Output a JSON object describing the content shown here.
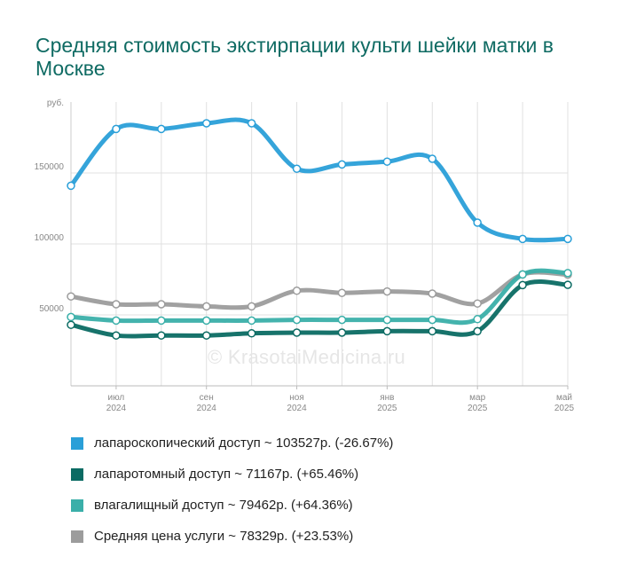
{
  "title": "Средняя стоимость экстирпации культи шейки матки в Москве",
  "watermark": "© KrasotaiMedicina.ru",
  "chart_data": {
    "type": "line",
    "y_unit": "руб.",
    "y_ticks": [
      50000,
      100000,
      150000
    ],
    "y_tick_labels": [
      "50000",
      "100000",
      "150000"
    ],
    "ylim": [
      0,
      200000
    ],
    "x_tick_labels": [
      {
        "month": "июл",
        "year": "2024"
      },
      {
        "month": "сен",
        "year": "2024"
      },
      {
        "month": "ноя",
        "year": "2024"
      },
      {
        "month": "янв",
        "year": "2025"
      },
      {
        "month": "мар",
        "year": "2025"
      },
      {
        "month": "май",
        "year": "2025"
      }
    ],
    "x": [
      "2024-06",
      "2024-07",
      "2024-08",
      "2024-09",
      "2024-10",
      "2024-11",
      "2024-12",
      "2025-01",
      "2025-02",
      "2025-03",
      "2025-04",
      "2025-05"
    ],
    "grid": true,
    "legend_position": "bottom",
    "series": [
      {
        "name": "лапароскопический доступ ~ 103527р. (-26.67%)",
        "color": "#2a9fd8",
        "values": [
          141000,
          181000,
          181000,
          185000,
          185000,
          153000,
          156000,
          158000,
          160000,
          115000,
          103500,
          103527
        ]
      },
      {
        "name": "лапаротомный доступ ~ 71167р. (+65.46%)",
        "color": "#0b6b63",
        "values": [
          43000,
          35500,
          35500,
          35500,
          37000,
          37500,
          37500,
          38500,
          38500,
          38500,
          71000,
          71167
        ]
      },
      {
        "name": "влагалищный доступ ~ 79462р. (+64.36%)",
        "color": "#3aafa9",
        "values": [
          48500,
          46000,
          46000,
          46000,
          46000,
          46500,
          46500,
          46500,
          46500,
          47000,
          78500,
          79462
        ]
      },
      {
        "name": "Средняя цена услуги ~ 78329р. (+23.53%)",
        "color": "#9c9c9c",
        "values": [
          63000,
          57500,
          57500,
          56000,
          56000,
          67000,
          65500,
          66500,
          65000,
          58000,
          78500,
          78329
        ]
      }
    ]
  }
}
